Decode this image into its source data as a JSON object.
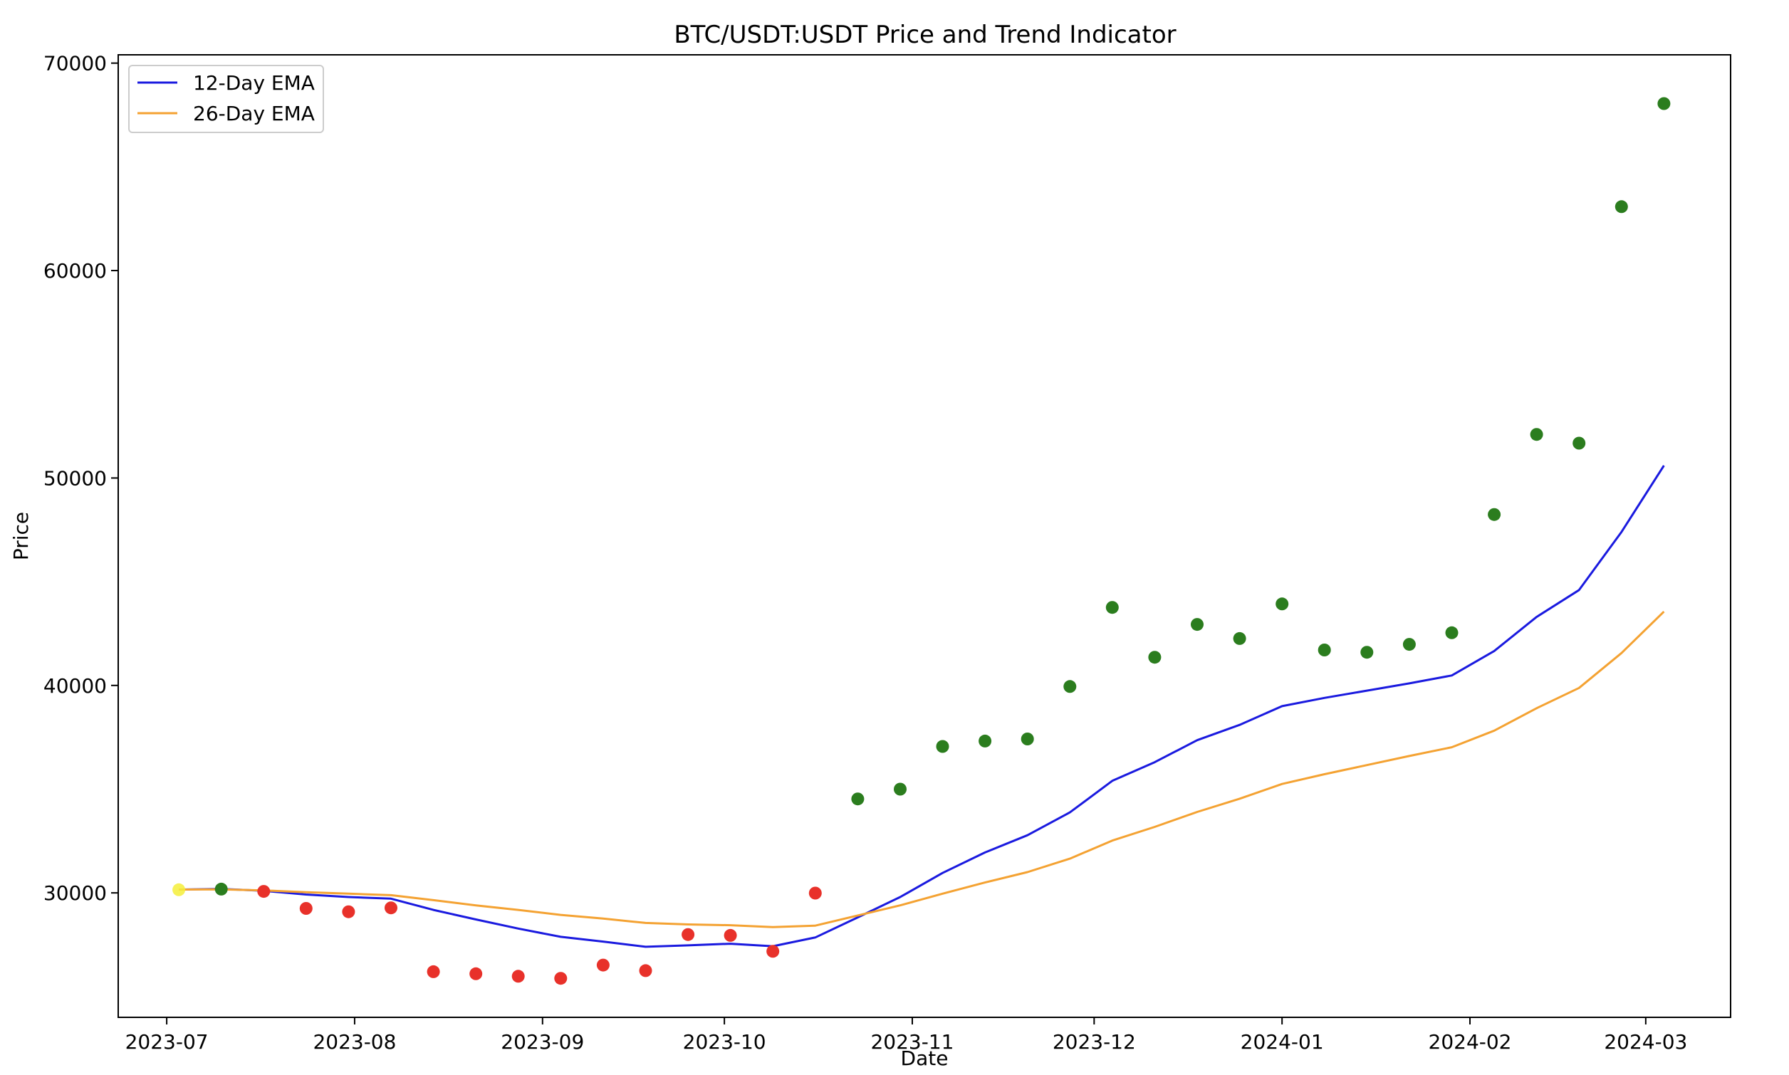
{
  "chart_data": {
    "type": "scatter",
    "title": "BTC/USDT:USDT Price and Trend Indicator",
    "xlabel": "Date",
    "ylabel": "Price",
    "xlim": [
      "2023-06-23",
      "2024-03-15"
    ],
    "ylim": [
      24000,
      70400
    ],
    "x_ticks": [
      "2023-07-01",
      "2023-08-01",
      "2023-09-01",
      "2023-10-01",
      "2023-11-01",
      "2023-12-01",
      "2024-01-01",
      "2024-02-01",
      "2024-03-01"
    ],
    "x_tick_labels": [
      "2023-07",
      "2023-08",
      "2023-09",
      "2023-10",
      "2023-11",
      "2023-12",
      "2024-01",
      "2024-02",
      "2024-03"
    ],
    "y_ticks": [
      30000,
      40000,
      50000,
      60000,
      70000
    ],
    "y_tick_labels": [
      "30000",
      "40000",
      "50000",
      "60000",
      "70000"
    ],
    "grid": false,
    "legend_position": "top-left",
    "dates": [
      "2023-07-03",
      "2023-07-10",
      "2023-07-17",
      "2023-07-24",
      "2023-07-31",
      "2023-08-07",
      "2023-08-14",
      "2023-08-21",
      "2023-08-28",
      "2023-09-04",
      "2023-09-11",
      "2023-09-18",
      "2023-09-25",
      "2023-10-02",
      "2023-10-09",
      "2023-10-16",
      "2023-10-23",
      "2023-10-30",
      "2023-11-06",
      "2023-11-13",
      "2023-11-20",
      "2023-11-27",
      "2023-12-04",
      "2023-12-11",
      "2023-12-18",
      "2023-12-25",
      "2024-01-01",
      "2024-01-08",
      "2024-01-15",
      "2024-01-22",
      "2024-01-29",
      "2024-02-05",
      "2024-02-12",
      "2024-02-19",
      "2024-02-26",
      "2024-03-04"
    ],
    "series": [
      {
        "name": "12-Day EMA",
        "kind": "line",
        "color": "#1a1adf",
        "values": [
          30160,
          30190,
          30100,
          29920,
          29800,
          29720,
          29180,
          28720,
          28280,
          27880,
          27650,
          27400,
          27470,
          27550,
          27430,
          27850,
          28820,
          29800,
          30960,
          31950,
          32780,
          33880,
          35400,
          36300,
          37360,
          38100,
          39000,
          39400,
          39750,
          40100,
          40480,
          41660,
          43300,
          44600,
          47400,
          50600
        ]
      },
      {
        "name": "26-Day EMA",
        "kind": "line",
        "color": "#f4a232",
        "values": [
          30160,
          30170,
          30120,
          30030,
          29960,
          29890,
          29650,
          29400,
          29180,
          28940,
          28760,
          28550,
          28480,
          28440,
          28350,
          28420,
          28910,
          29400,
          29960,
          30500,
          31000,
          31650,
          32520,
          33180,
          33900,
          34540,
          35250,
          35720,
          36160,
          36600,
          37020,
          37820,
          38900,
          39880,
          41560,
          43560
        ]
      }
    ],
    "points": {
      "colors": {
        "neutral": "#f5ee3a",
        "bullish": "#2b7d1e",
        "bearish": "#e8312a"
      },
      "prices": [
        30150,
        30180,
        30070,
        29250,
        29090,
        29280,
        26200,
        26100,
        25980,
        25880,
        26520,
        26250,
        27990,
        27950,
        27180,
        29990,
        34530,
        35000,
        37060,
        37320,
        37420,
        39950,
        43760,
        41360,
        42940,
        42260,
        43930,
        41710,
        41600,
        41980,
        42540,
        48240,
        52100,
        51680,
        63080,
        68050
      ],
      "signals": [
        "neutral",
        "bullish",
        "bearish",
        "bearish",
        "bearish",
        "bearish",
        "bearish",
        "bearish",
        "bearish",
        "bearish",
        "bearish",
        "bearish",
        "bearish",
        "bearish",
        "bearish",
        "bearish",
        "bullish",
        "bullish",
        "bullish",
        "bullish",
        "bullish",
        "bullish",
        "bullish",
        "bullish",
        "bullish",
        "bullish",
        "bullish",
        "bullish",
        "bullish",
        "bullish",
        "bullish",
        "bullish",
        "bullish",
        "bullish",
        "bullish",
        "bullish"
      ]
    }
  }
}
